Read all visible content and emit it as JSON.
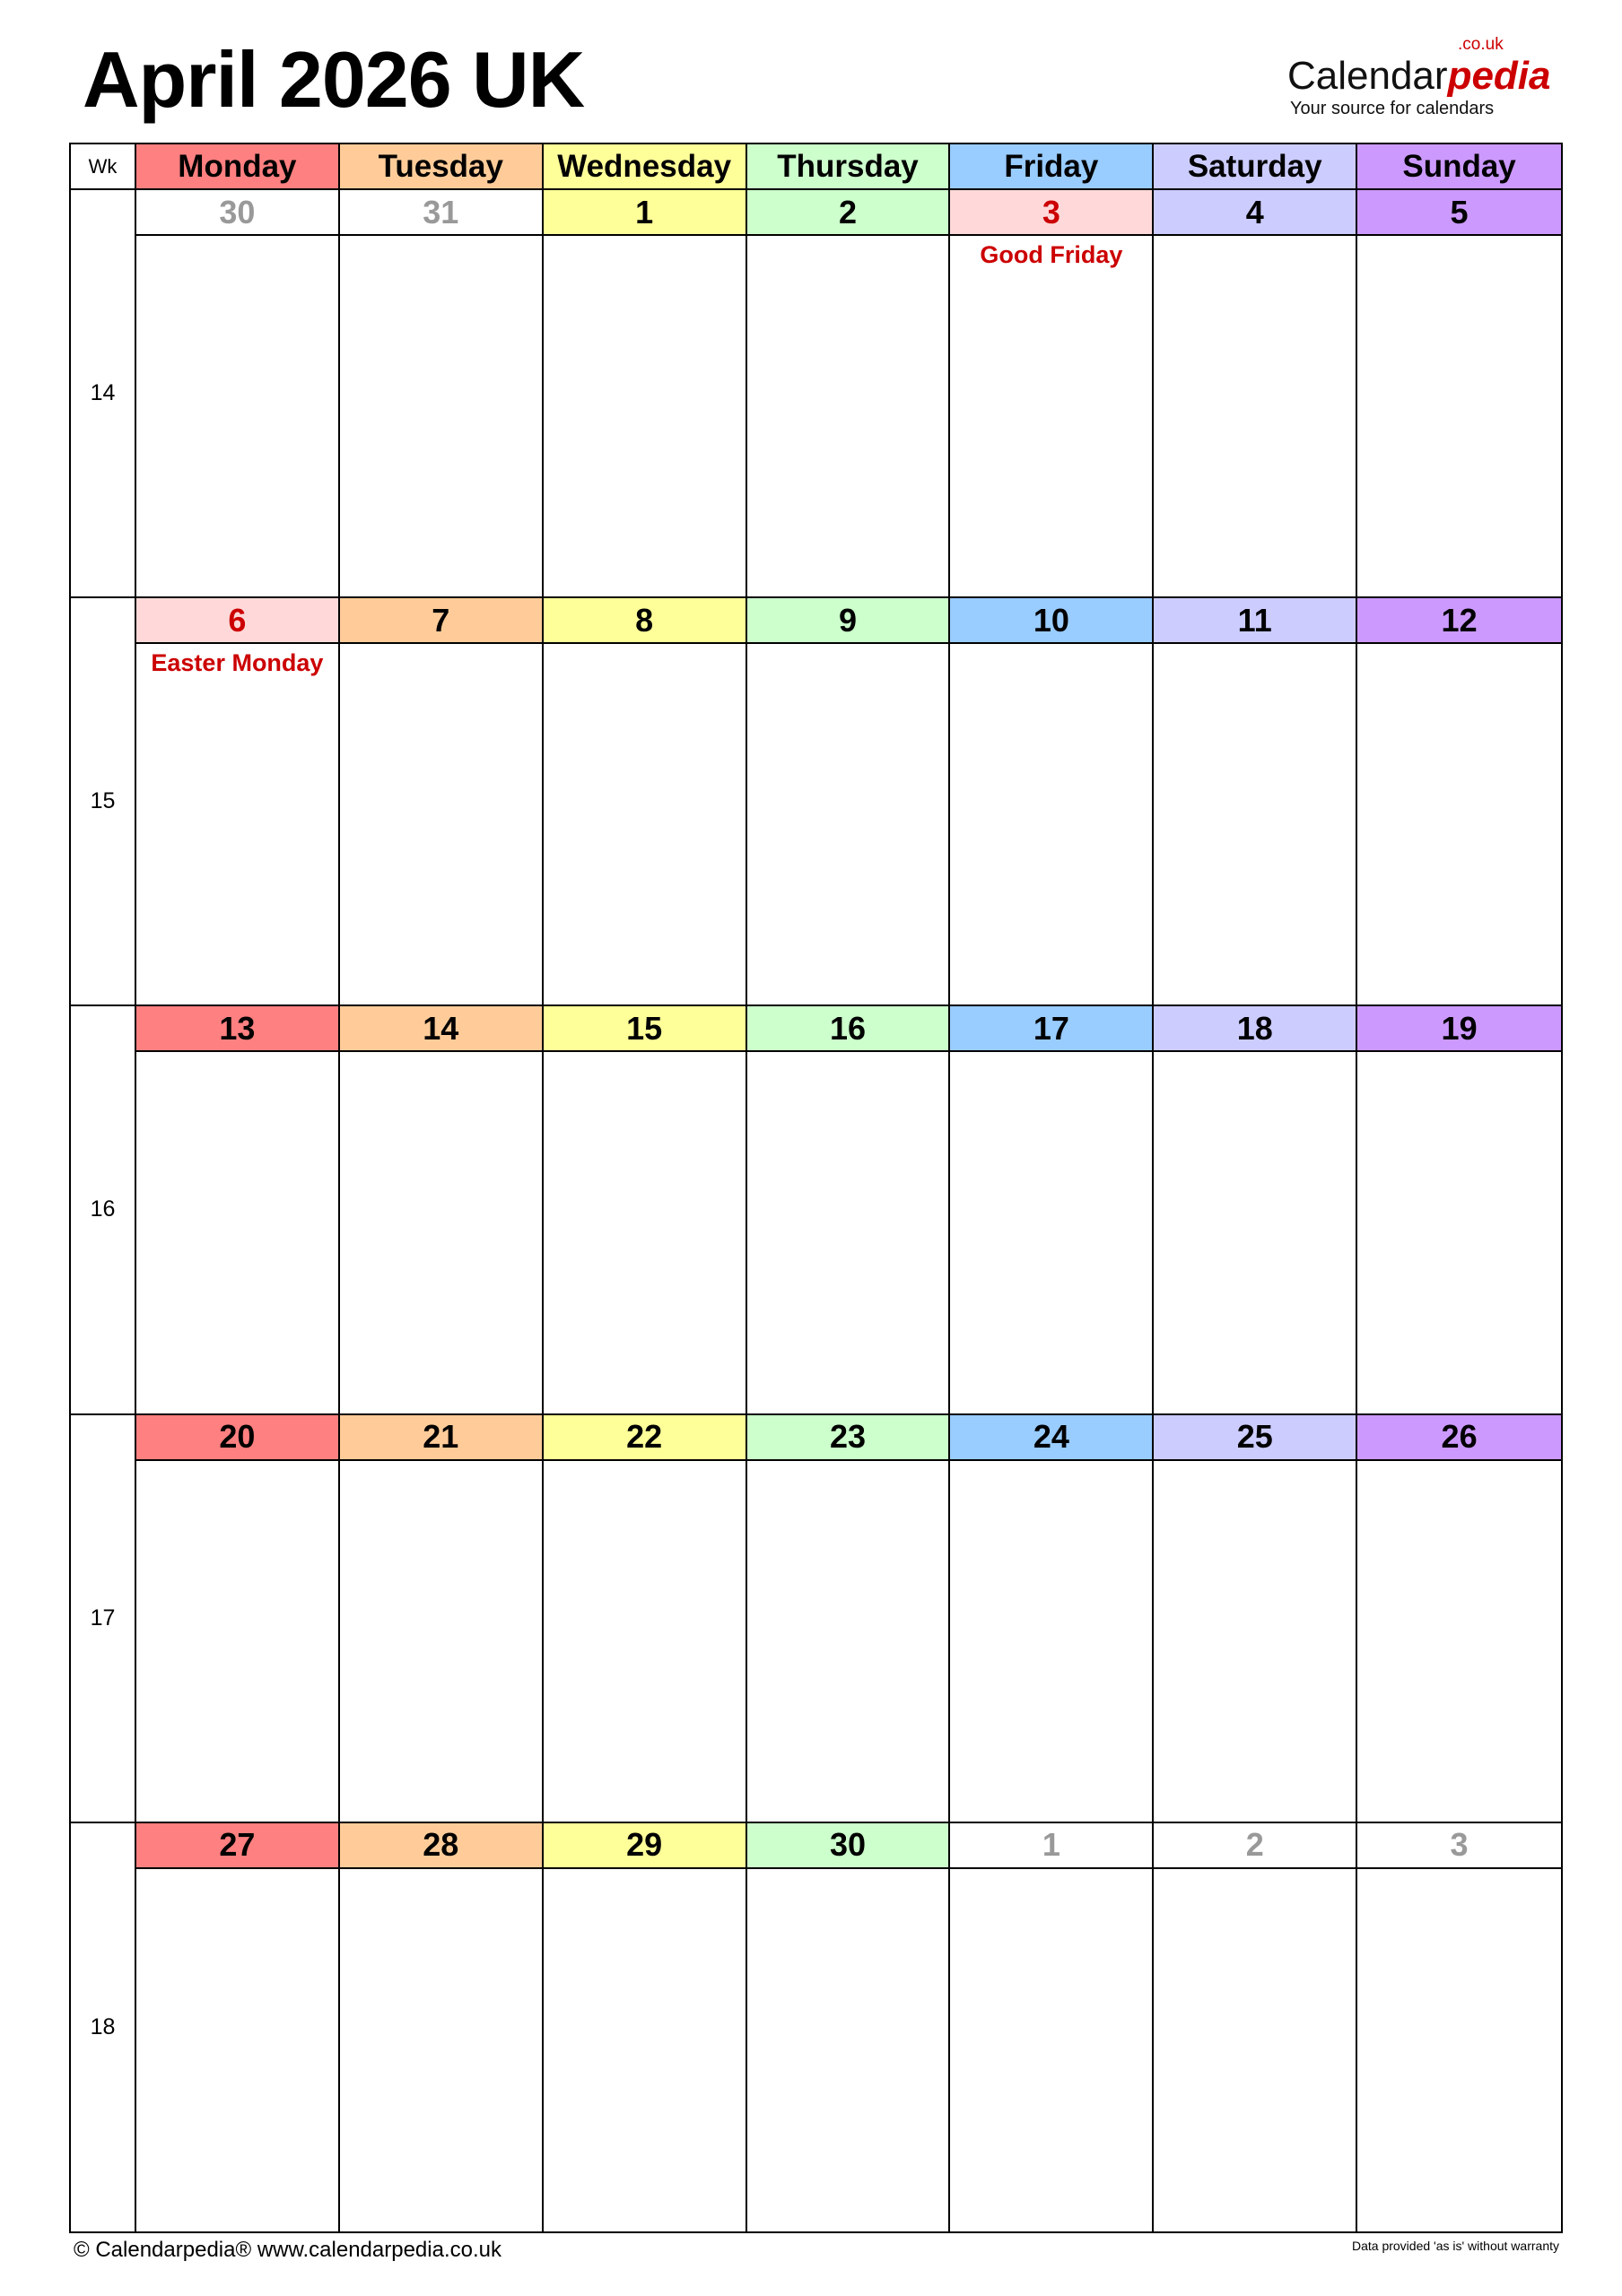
{
  "title": "April 2026 UK",
  "logo": {
    "main": "Calendar",
    "accent": "pedia",
    "domain": ".co.uk",
    "tagline": "Your source for calendars"
  },
  "colors": {
    "Monday": "#ff8080",
    "Tuesday": "#ffcc99",
    "Wednesday": "#ffff99",
    "Thursday": "#ccffcc",
    "Friday": "#99ccff",
    "Saturday": "#ccccff",
    "Sunday": "#cc99ff",
    "holiday_bg": "#ffd9d9",
    "holiday_text": "#cc0000",
    "other_month": "#999999"
  },
  "header": {
    "wk": "Wk",
    "days": [
      "Monday",
      "Tuesday",
      "Wednesday",
      "Thursday",
      "Friday",
      "Saturday",
      "Sunday"
    ]
  },
  "weeks": [
    {
      "wk": "14",
      "days": [
        {
          "d": "30",
          "other": true
        },
        {
          "d": "31",
          "other": true
        },
        {
          "d": "1"
        },
        {
          "d": "2"
        },
        {
          "d": "3",
          "holiday": "Good Friday"
        },
        {
          "d": "4"
        },
        {
          "d": "5"
        }
      ]
    },
    {
      "wk": "15",
      "days": [
        {
          "d": "6",
          "holiday": "Easter Monday"
        },
        {
          "d": "7"
        },
        {
          "d": "8"
        },
        {
          "d": "9"
        },
        {
          "d": "10"
        },
        {
          "d": "11"
        },
        {
          "d": "12"
        }
      ]
    },
    {
      "wk": "16",
      "days": [
        {
          "d": "13"
        },
        {
          "d": "14"
        },
        {
          "d": "15"
        },
        {
          "d": "16"
        },
        {
          "d": "17"
        },
        {
          "d": "18"
        },
        {
          "d": "19"
        }
      ]
    },
    {
      "wk": "17",
      "days": [
        {
          "d": "20"
        },
        {
          "d": "21"
        },
        {
          "d": "22"
        },
        {
          "d": "23"
        },
        {
          "d": "24"
        },
        {
          "d": "25"
        },
        {
          "d": "26"
        }
      ]
    },
    {
      "wk": "18",
      "days": [
        {
          "d": "27"
        },
        {
          "d": "28"
        },
        {
          "d": "29"
        },
        {
          "d": "30"
        },
        {
          "d": "1",
          "other": true
        },
        {
          "d": "2",
          "other": true
        },
        {
          "d": "3",
          "other": true
        }
      ]
    }
  ],
  "footer": {
    "left": "© Calendarpedia®   www.calendarpedia.co.uk",
    "right": "Data provided 'as is' without warranty"
  }
}
